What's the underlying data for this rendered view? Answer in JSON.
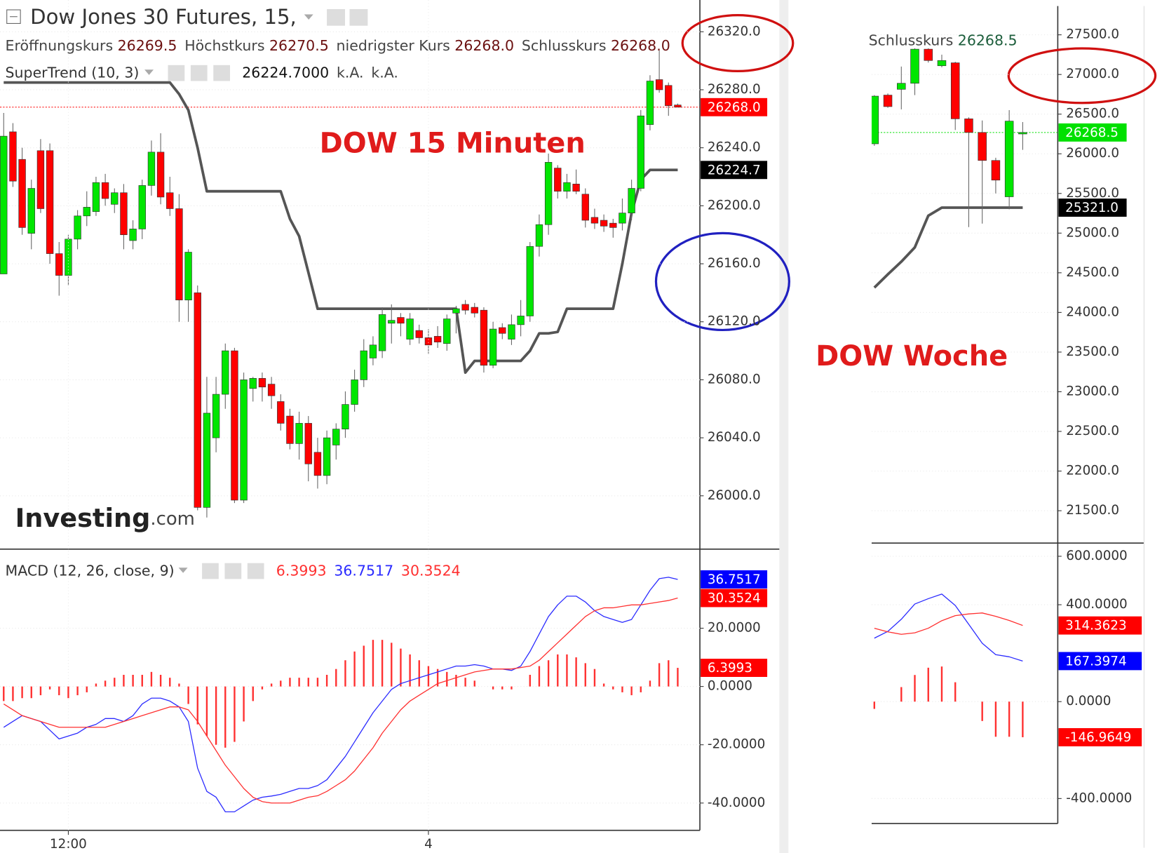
{
  "chart_data": [
    {
      "type": "candlestick",
      "title": "Dow Jones 30 Futures, 15,",
      "ohlc_legend": [
        {
          "label": "Eröffnungskurs",
          "value": "26269.5"
        },
        {
          "label": "Höchstkurs",
          "value": "26270.5"
        },
        {
          "label": "niedrigster Kurs",
          "value": "26268.0"
        },
        {
          "label": "Schlusskurs",
          "value": "26268.0"
        }
      ],
      "annotation": "DOW 15 Minuten",
      "logo": [
        "Investing",
        ".com"
      ],
      "up_color": "#00e600",
      "down_color": "#ff0000",
      "xlim": [
        -0.4,
        75.4
      ],
      "ylim": [
        25963.5,
        26341.9
      ],
      "yticks": [
        {
          "value": 26000,
          "label": "26000.0"
        },
        {
          "value": 26040,
          "label": "26040.0"
        },
        {
          "value": 26080,
          "label": "26080.0"
        },
        {
          "value": 26120,
          "label": "26120.0"
        },
        {
          "value": 26160,
          "label": "26160.0"
        },
        {
          "value": 26200,
          "label": "26200.0"
        },
        {
          "value": 26240,
          "label": "26240.0"
        },
        {
          "value": 26280,
          "label": "26280.0"
        },
        {
          "value": 26320,
          "label": "26320.0"
        }
      ],
      "grid": true,
      "open": [
        26153,
        26251,
        26232,
        26181,
        26238,
        26238,
        26167,
        26152,
        26177,
        26193,
        26196,
        26216,
        26201,
        26209,
        26176,
        26184,
        26214,
        26237,
        26209,
        26198,
        26135,
        26140,
        25992,
        26040,
        26070,
        26100,
        25997,
        26074,
        26081,
        26077,
        26065,
        26055,
        26036,
        26050,
        26030,
        26014,
        26035,
        26046,
        26063,
        26080,
        26095,
        26100,
        26119,
        26123,
        26108,
        26114,
        26109,
        26110,
        26105,
        26126,
        26132,
        26130,
        26128,
        26090,
        26116,
        26108,
        26118,
        26124,
        26172,
        26187,
        26226,
        26210,
        26215,
        26208,
        26192,
        26190,
        26188,
        26188,
        26195,
        26212,
        26256,
        26287,
        26283,
        26269.5
      ],
      "high": [
        26264,
        26257,
        26240,
        26218,
        26246,
        26243,
        26175,
        26180,
        26197,
        26210,
        26220,
        26222,
        26212,
        26215,
        26190,
        26218,
        26245,
        26250,
        26220,
        26208,
        26170,
        26145,
        26082,
        26082,
        26105,
        26102,
        26085,
        26082,
        26085,
        26082,
        26070,
        26060,
        26058,
        26055,
        26040,
        26045,
        26050,
        26072,
        26087,
        26108,
        26110,
        26130,
        26132,
        26126,
        26126,
        26118,
        26115,
        26117,
        26125,
        26131,
        26135,
        26133,
        26130,
        26120,
        26119,
        26125,
        26135,
        26175,
        26194,
        26236,
        26228,
        26222,
        26225,
        26212,
        26198,
        26194,
        26191,
        26205,
        26218,
        26266,
        26290,
        26307,
        26285,
        26270.5
      ],
      "low": [
        26153,
        26213,
        26180,
        26170,
        26195,
        26160,
        26138,
        26145,
        26170,
        26186,
        26193,
        26200,
        26195,
        26170,
        26170,
        26177,
        26207,
        26201,
        26193,
        26120,
        26120,
        25990,
        25985,
        26030,
        26060,
        25995,
        25995,
        26065,
        26065,
        26060,
        26045,
        26032,
        26025,
        26010,
        26005,
        26008,
        26025,
        26040,
        26058,
        26075,
        26090,
        26095,
        26105,
        26110,
        26104,
        26105,
        26098,
        26102,
        26100,
        26112,
        26125,
        26123,
        26085,
        26088,
        26108,
        26104,
        26110,
        26120,
        26165,
        26180,
        26205,
        26205,
        26208,
        26185,
        26184,
        26182,
        26178,
        26183,
        26190,
        26210,
        26252,
        26278,
        26262,
        26268
      ],
      "close": [
        26248,
        26217,
        26185,
        26212,
        26198,
        26167,
        26152,
        26177,
        26193,
        26199,
        26216,
        26205,
        26209,
        26180,
        26184,
        26214,
        26237,
        26206,
        26198,
        26135,
        26168,
        25992,
        26057,
        26070,
        26100,
        25997,
        26080,
        26081,
        26075,
        26069,
        26050,
        26036,
        26050,
        26022,
        26014,
        26040,
        26046,
        26063,
        26080,
        26100,
        26104,
        26125,
        26121,
        26119,
        26122,
        26109,
        26104,
        26106,
        26122,
        26129,
        26128,
        26126,
        26090,
        26115,
        26112,
        26118,
        26124,
        26172,
        26187,
        26230,
        26210,
        26216,
        26210,
        26190,
        26188,
        26186,
        26185,
        26195,
        26212,
        26262,
        26286,
        26280,
        26269,
        26268
      ],
      "series": [
        {
          "name": "SuperTrend (10, 3)",
          "color": "#555555",
          "legend_values": [
            "26224.7000",
            "k.A.",
            "k.A."
          ],
          "values": [
            26285,
            26285,
            26285,
            26285,
            26285,
            26285,
            26285,
            26285,
            26285,
            26285,
            26285,
            26285,
            26285,
            26285,
            26285,
            26285,
            26285,
            26285,
            26285,
            26277,
            26266,
            26240,
            26210,
            26210,
            26210,
            26210,
            26210,
            26210,
            26210,
            26210,
            26210,
            26191,
            26179,
            26154,
            26129,
            26129,
            26129,
            26129,
            26129,
            26129,
            26129,
            26129,
            26129,
            26129,
            26129,
            26129,
            26129,
            26129,
            26129,
            26129,
            26085,
            26093,
            26093,
            26093,
            26093,
            26093,
            26093,
            26100,
            26112,
            26112,
            26113,
            26129,
            26129,
            26129,
            26129,
            26129,
            26129,
            26160,
            26195,
            26218,
            26224.7,
            26224.7,
            26224.7,
            26224.7
          ]
        }
      ],
      "price_tags": [
        {
          "value": 26268,
          "label": "26268.0",
          "color": "#ff0000",
          "line": true
        },
        {
          "value": 26224.7,
          "label": "26224.7",
          "color": "#000000"
        }
      ]
    },
    {
      "type": "macd",
      "title": "MACD (12, 26, close, 9)",
      "xlim": [
        -0.4,
        75.4
      ],
      "xticks": [
        {
          "value": 7,
          "label": "12:00"
        },
        {
          "value": 46,
          "label": "4"
        }
      ],
      "ylim": [
        -49.35,
        46.75
      ],
      "yticks": [
        {
          "value": -40,
          "label": "-40.0000"
        },
        {
          "value": -20,
          "label": "-20.0000"
        },
        {
          "value": 0,
          "label": "0.0000"
        },
        {
          "value": 20,
          "label": "20.0000"
        }
      ],
      "grid": true,
      "series": [
        {
          "kind": "histogram",
          "color": "#ff3030",
          "legend_value": "6.3993",
          "values": [
            -5,
            -5,
            -4,
            -4,
            -3,
            -1,
            -3,
            -4,
            -3,
            -2,
            1,
            2,
            3,
            4,
            4,
            4,
            5,
            4,
            3,
            1,
            -6,
            -13,
            -17,
            -20,
            -21,
            -19,
            -12,
            -5,
            -1,
            1,
            2,
            3,
            3,
            3,
            3,
            4,
            6,
            9,
            12,
            14,
            16,
            16,
            15,
            13,
            11,
            9,
            7,
            6,
            5,
            4,
            3,
            2,
            0,
            -1,
            -1,
            -1,
            0,
            4,
            7,
            9,
            11,
            11,
            10,
            8,
            6,
            1,
            -1,
            -2,
            -3,
            -2,
            2,
            8,
            9,
            6.3993
          ]
        },
        {
          "kind": "line",
          "color": "#2b2bff",
          "legend_value": "36.7517",
          "values": [
            -14,
            -12,
            -10,
            -11,
            -12,
            -15,
            -18,
            -17,
            -16,
            -14,
            -13,
            -11,
            -11,
            -12,
            -10,
            -6,
            -4,
            -4,
            -5,
            -7,
            -12,
            -28,
            -36,
            -38,
            -43,
            -43,
            -41,
            -39,
            -38,
            -37.6,
            -37,
            -36,
            -35,
            -35,
            -34,
            -32,
            -28,
            -24,
            -19,
            -14,
            -9,
            -5,
            -1,
            1,
            2,
            3,
            4,
            5,
            6,
            7,
            7,
            7.5,
            7,
            6,
            6,
            5.5,
            7,
            12,
            18,
            24,
            28,
            31,
            31,
            29,
            26,
            24,
            23,
            22,
            23,
            28,
            33,
            37,
            37.5,
            36.7517
          ]
        },
        {
          "kind": "line",
          "color": "#ff3030",
          "legend_value": "30.3524",
          "values": [
            -6,
            -8,
            -10,
            -11,
            -12,
            -13,
            -14,
            -14,
            -14,
            -14,
            -14,
            -14,
            -13,
            -12,
            -11,
            -10,
            -9,
            -8,
            -7,
            -7,
            -8,
            -12,
            -17,
            -22,
            -27,
            -31,
            -35,
            -38,
            -39.5,
            -40,
            -40,
            -40,
            -39,
            -38,
            -37.5,
            -36,
            -34,
            -32,
            -29,
            -25,
            -21,
            -16,
            -12,
            -8,
            -5,
            -3,
            -1,
            1,
            2,
            3,
            4,
            5,
            5.5,
            6,
            6,
            6,
            6.5,
            7,
            9,
            12,
            15,
            18,
            21,
            24,
            26,
            27,
            27,
            27.5,
            28,
            28,
            28.5,
            29,
            29.5,
            30.3524
          ]
        }
      ],
      "price_tags": [
        {
          "value": 36.7517,
          "label": "36.7517",
          "color": "#0000ff"
        },
        {
          "value": 30.3524,
          "label": "30.3524",
          "color": "#ff0000"
        },
        {
          "value": 6.3993,
          "label": "6.3993",
          "color": "#ff0000"
        }
      ]
    },
    {
      "type": "candlestick",
      "ohlc_legend": [
        {
          "label": "Schlusskurs",
          "value": "26268.5"
        }
      ],
      "annotation": "DOW Woche",
      "up_color": "#00e600",
      "down_color": "#ff0000",
      "xlim": [
        -0.2,
        13.6
      ],
      "ylim": [
        21097,
        27939
      ],
      "yticks": [
        {
          "value": 21500,
          "label": "21500.0"
        },
        {
          "value": 22000,
          "label": "22000.0"
        },
        {
          "value": 22500,
          "label": "22500.0"
        },
        {
          "value": 23000,
          "label": "23000.0"
        },
        {
          "value": 23500,
          "label": "23500.0"
        },
        {
          "value": 24000,
          "label": "24000.0"
        },
        {
          "value": 24500,
          "label": "24500.0"
        },
        {
          "value": 25000,
          "label": "25000.0"
        },
        {
          "value": 25500,
          "label": "25500.0"
        },
        {
          "value": 26000,
          "label": "26000.0"
        },
        {
          "value": 26500,
          "label": "26500.0"
        },
        {
          "value": 27000,
          "label": "27000.0"
        },
        {
          "value": 27500,
          "label": "27500.0"
        }
      ],
      "grid": true,
      "open": [
        26126,
        26740,
        26813,
        26889,
        27319,
        27110,
        27147,
        26441,
        26269,
        25916,
        25458,
        26250
      ],
      "high": [
        26740,
        26760,
        27100,
        27330,
        27330,
        27250,
        27160,
        26460,
        26420,
        25950,
        26550,
        26400
      ],
      "low": [
        26100,
        26580,
        26560,
        26740,
        27150,
        27090,
        26300,
        25076,
        25120,
        25500,
        25300,
        26050
      ],
      "close": [
        26727,
        26595,
        26889,
        27319,
        27176,
        27176,
        26441,
        26269,
        25916,
        25668,
        26412,
        26268.5
      ],
      "series": [
        {
          "color": "#555555",
          "values": [
            24313,
            24480,
            24640,
            24820,
            25219,
            25321,
            25321,
            25321,
            25321,
            25321,
            25321,
            25321
          ]
        }
      ],
      "price_tags": [
        {
          "value": 26268.5,
          "label": "26268.5",
          "color": "#00e000",
          "line": true
        },
        {
          "value": 25321,
          "label": "25321.0",
          "color": "#000000"
        }
      ]
    },
    {
      "type": "macd",
      "xlim": [
        -0.2,
        13.6
      ],
      "ylim": [
        -503,
        653
      ],
      "yticks": [
        {
          "value": -400,
          "label": "-400.0000"
        },
        {
          "value": 0,
          "label": "0.0000"
        },
        {
          "value": 400,
          "label": "400.0000"
        },
        {
          "value": 600,
          "label": "600.0000"
        }
      ],
      "grid": true,
      "series": [
        {
          "kind": "histogram",
          "color": "#ff3030",
          "values": [
            -30,
            0,
            60,
            110,
            140,
            145,
            80,
            0,
            -80,
            -145,
            -145,
            -146.9649
          ]
        },
        {
          "kind": "line",
          "color": "#2b2bff",
          "values": [
            262,
            290,
            340,
            403,
            425,
            444,
            397,
            319,
            241,
            194,
            185,
            167.3974
          ]
        },
        {
          "kind": "line",
          "color": "#ff3030",
          "values": [
            303,
            288,
            278,
            284,
            303,
            334,
            355,
            362,
            366,
            352,
            335,
            314.3623
          ]
        }
      ],
      "price_tags": [
        {
          "value": 314.3623,
          "label": "314.3623",
          "color": "#ff0000"
        },
        {
          "value": 167.3974,
          "label": "167.3974",
          "color": "#0000ff"
        },
        {
          "value": -146.9649,
          "label": "-146.9649",
          "color": "#ff0000"
        }
      ]
    }
  ]
}
